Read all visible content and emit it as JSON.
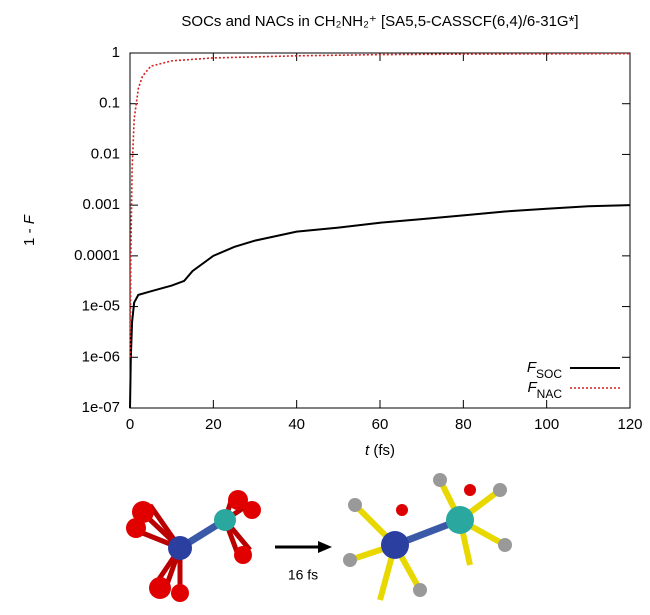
{
  "chart_data": {
    "type": "line",
    "title": "SOCs and NACs in CH₂NH₂⁺ [SA5,5-CASSCF(6,4)/6-31G*]",
    "xlabel": "t (fs)",
    "ylabel": "1 - F",
    "xlim": [
      0,
      120
    ],
    "xticks": [
      0,
      20,
      40,
      60,
      80,
      100,
      120
    ],
    "ylim": [
      1e-07,
      1
    ],
    "ylog": true,
    "yticks": [
      1,
      0.1,
      0.01,
      0.001,
      0.0001,
      {
        "value": 1e-05,
        "label": "1e-05"
      },
      {
        "value": 1e-06,
        "label": "1e-06"
      },
      {
        "value": 1e-07,
        "label": "1e-07"
      }
    ],
    "legend": "lower right",
    "series": [
      {
        "name": "FSOC",
        "color": "#000000",
        "dash": "solid",
        "x": [
          0,
          0.2,
          0.5,
          1,
          2,
          5,
          10,
          13,
          15,
          20,
          25,
          30,
          40,
          50,
          60,
          70,
          80,
          90,
          100,
          110,
          120
        ],
        "values": [
          1e-07,
          1e-06,
          5e-06,
          1.2e-05,
          1.7e-05,
          2e-05,
          2.6e-05,
          3.2e-05,
          5e-05,
          0.0001,
          0.00015,
          0.0002,
          0.0003,
          0.00036,
          0.00045,
          0.00053,
          0.00063,
          0.00075,
          0.00085,
          0.00095,
          0.001
        ]
      },
      {
        "name": "FNAC",
        "color": "#d62020",
        "dash": "dotted",
        "x": [
          0.05,
          0.2,
          0.5,
          1,
          2,
          3,
          5,
          10,
          20,
          40,
          60,
          80,
          120
        ],
        "values": [
          1e-06,
          0.0001,
          0.005,
          0.05,
          0.2,
          0.35,
          0.55,
          0.7,
          0.8,
          0.88,
          0.93,
          0.95,
          0.97
        ]
      }
    ],
    "annotation": "16 fs"
  }
}
